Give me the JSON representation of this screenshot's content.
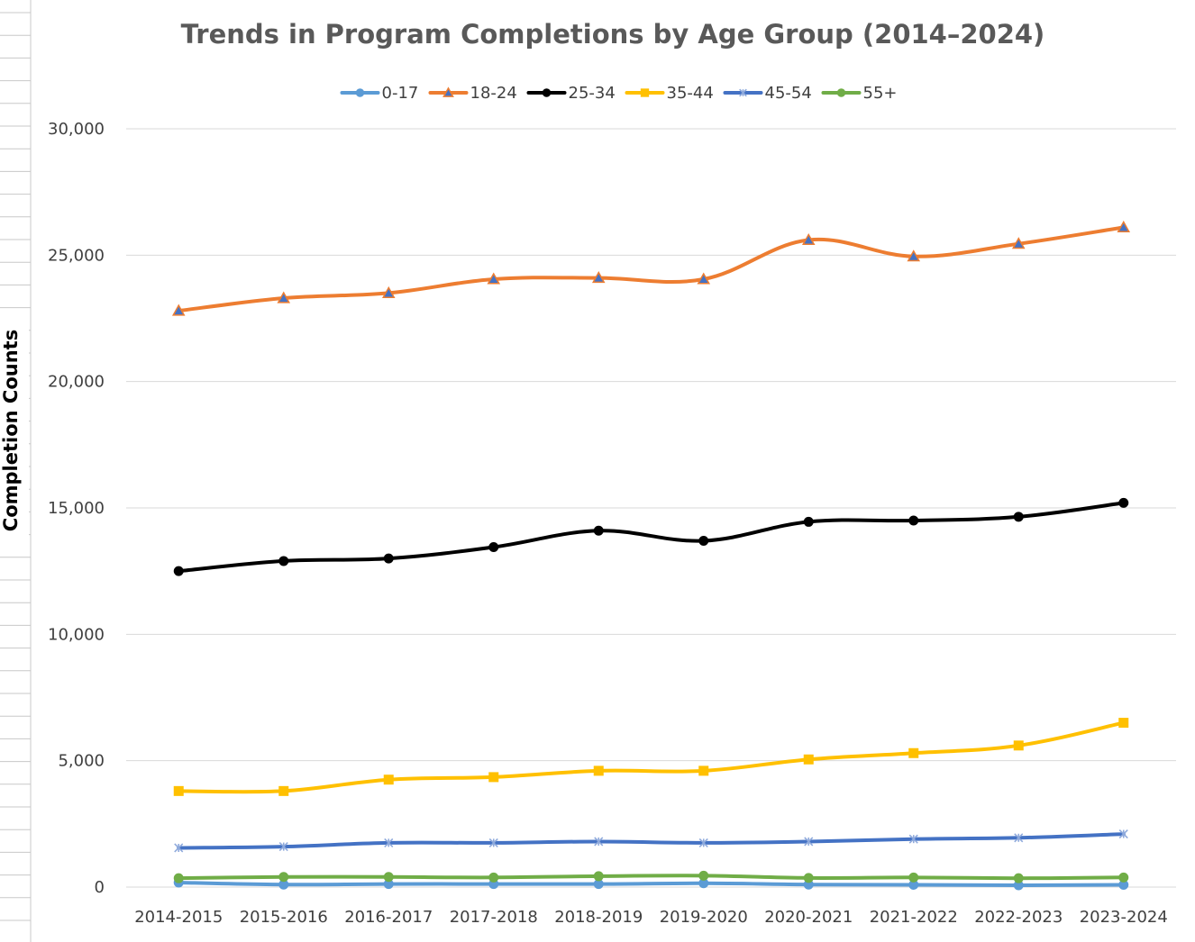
{
  "chart_data": {
    "type": "line",
    "title": "Trends in Program Completions by Age Group (2014–2024)",
    "xlabel": "",
    "ylabel": "Completion Counts",
    "categories": [
      "2014-2015",
      "2015-2016",
      "2016-2017",
      "2017-2018",
      "2018-2019",
      "2019-2020",
      "2020-2021",
      "2021-2022",
      "2022-2023",
      "2023-2024"
    ],
    "ylim": [
      0,
      30000
    ],
    "yticks": [
      0,
      5000,
      10000,
      15000,
      20000,
      25000,
      30000
    ],
    "ytick_labels": [
      "0",
      "5,000",
      "10,000",
      "15,000",
      "20,000",
      "25,000",
      "30,000"
    ],
    "grid": true,
    "smooth": true,
    "legend_position": "top",
    "series": [
      {
        "name": "0-17",
        "color": "#5b9bd5",
        "marker": "circle",
        "values": [
          180,
          100,
          120,
          120,
          120,
          150,
          100,
          90,
          70,
          90
        ]
      },
      {
        "name": "18-24",
        "color": "#ed7d31",
        "marker": "triangle",
        "values": [
          22800,
          23300,
          23500,
          24050,
          24100,
          24050,
          25600,
          24950,
          25450,
          26100
        ]
      },
      {
        "name": "25-34",
        "color": "#000000",
        "marker": "circle",
        "values": [
          12500,
          12900,
          13000,
          13450,
          14100,
          13700,
          14450,
          14500,
          14650,
          15200
        ]
      },
      {
        "name": "35-44",
        "color": "#ffc000",
        "marker": "square",
        "values": [
          3800,
          3800,
          4250,
          4350,
          4600,
          4600,
          5050,
          5300,
          5600,
          6500
        ]
      },
      {
        "name": "45-54",
        "color": "#4472c4",
        "marker": "x",
        "values": [
          1550,
          1600,
          1750,
          1750,
          1800,
          1750,
          1800,
          1900,
          1950,
          2100
        ]
      },
      {
        "name": "55+",
        "color": "#70ad47",
        "marker": "circle",
        "values": [
          350,
          400,
          400,
          380,
          430,
          450,
          360,
          380,
          350,
          380
        ]
      }
    ]
  }
}
